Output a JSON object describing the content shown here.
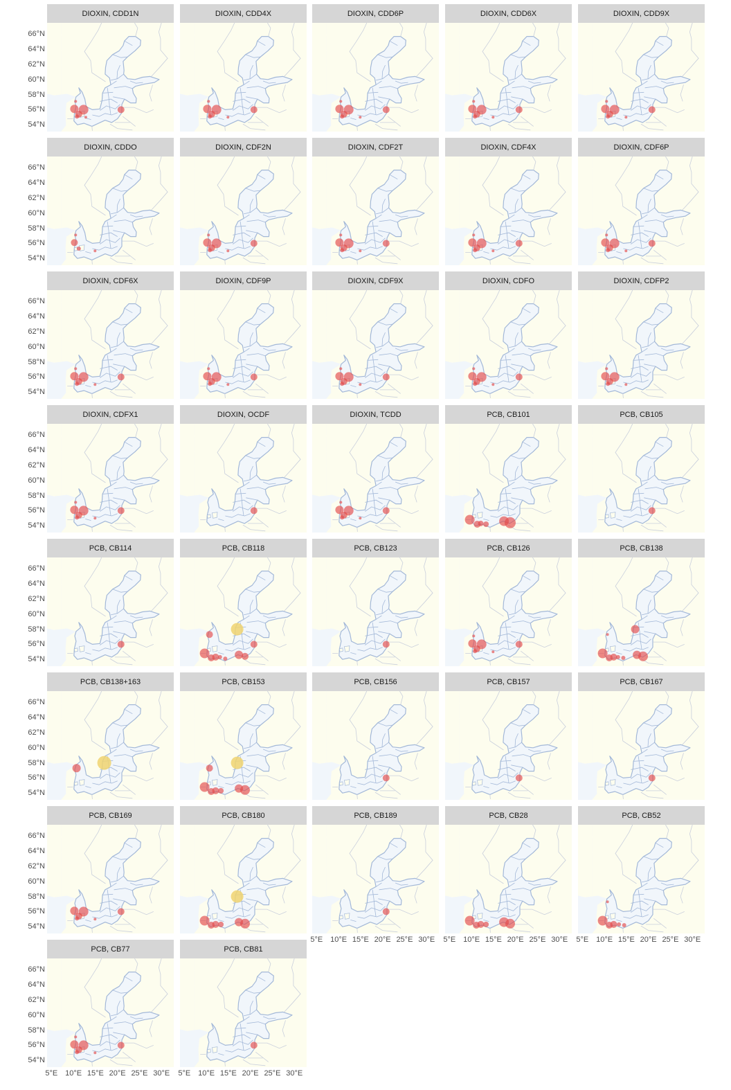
{
  "panels": [
    {
      "title": "DIOXIN, CDD1N",
      "points": [
        [
          10.5,
          57.2,
          2,
          "red"
        ],
        [
          10.2,
          56.2,
          6,
          "red"
        ],
        [
          12.3,
          56.1,
          7,
          "red"
        ],
        [
          11.2,
          55.5,
          5,
          "red"
        ],
        [
          10.8,
          55.2,
          3,
          "red"
        ],
        [
          12.8,
          55.1,
          2,
          "red"
        ],
        [
          20.8,
          56.1,
          5,
          "red"
        ]
      ]
    },
    {
      "title": "DIOXIN, CDD4X",
      "points": [
        [
          10.5,
          57.2,
          2,
          "red"
        ],
        [
          10.2,
          56.2,
          6,
          "red"
        ],
        [
          12.3,
          56.1,
          7,
          "red"
        ],
        [
          11.2,
          55.5,
          5,
          "red"
        ],
        [
          10.8,
          55.2,
          3,
          "red"
        ],
        [
          14.9,
          55.1,
          2,
          "red"
        ],
        [
          20.8,
          56.1,
          5,
          "red"
        ]
      ]
    },
    {
      "title": "DIOXIN, CDD6P",
      "points": [
        [
          10.5,
          57.2,
          2,
          "red"
        ],
        [
          10.2,
          56.2,
          6,
          "red"
        ],
        [
          12.3,
          56.1,
          7,
          "red"
        ],
        [
          11.2,
          55.5,
          5,
          "red"
        ],
        [
          10.8,
          55.2,
          3,
          "red"
        ],
        [
          14.9,
          55.1,
          2,
          "red"
        ],
        [
          20.8,
          56.1,
          5,
          "red"
        ]
      ]
    },
    {
      "title": "DIOXIN, CDD6X",
      "points": [
        [
          10.5,
          57.2,
          2,
          "red"
        ],
        [
          10.2,
          56.2,
          6,
          "red"
        ],
        [
          12.3,
          56.1,
          7,
          "red"
        ],
        [
          11.2,
          55.5,
          5,
          "red"
        ],
        [
          10.8,
          55.2,
          3,
          "red"
        ],
        [
          14.9,
          55.1,
          2,
          "red"
        ],
        [
          20.8,
          56.1,
          5,
          "red"
        ]
      ]
    },
    {
      "title": "DIOXIN, CDD9X",
      "points": [
        [
          10.5,
          57.2,
          2,
          "red"
        ],
        [
          10.2,
          56.2,
          6,
          "red"
        ],
        [
          12.3,
          56.1,
          7,
          "red"
        ],
        [
          11.2,
          55.5,
          5,
          "red"
        ],
        [
          10.8,
          55.2,
          3,
          "red"
        ],
        [
          14.9,
          55.1,
          2,
          "red"
        ],
        [
          20.8,
          56.1,
          5,
          "red"
        ]
      ]
    },
    {
      "title": "DIOXIN, CDDO",
      "points": [
        [
          10.5,
          57.2,
          2,
          "red"
        ],
        [
          10.2,
          56.2,
          5,
          "red"
        ],
        [
          11.2,
          55.4,
          3,
          "red"
        ],
        [
          14.9,
          55.1,
          2,
          "red"
        ]
      ]
    },
    {
      "title": "DIOXIN, CDF2N",
      "points": [
        [
          10.5,
          57.2,
          2,
          "red"
        ],
        [
          10.2,
          56.2,
          6,
          "red"
        ],
        [
          12.3,
          56.1,
          7,
          "red"
        ],
        [
          11.2,
          55.5,
          5,
          "red"
        ],
        [
          10.8,
          55.2,
          3,
          "red"
        ],
        [
          14.9,
          55.1,
          2,
          "red"
        ],
        [
          20.8,
          56.1,
          5,
          "red"
        ]
      ]
    },
    {
      "title": "DIOXIN, CDF2T",
      "points": [
        [
          10.5,
          57.2,
          2,
          "red"
        ],
        [
          10.2,
          56.2,
          6,
          "red"
        ],
        [
          12.3,
          56.1,
          7,
          "red"
        ],
        [
          11.2,
          55.5,
          5,
          "red"
        ],
        [
          10.8,
          55.2,
          3,
          "red"
        ],
        [
          14.9,
          55.1,
          2,
          "red"
        ],
        [
          20.8,
          56.1,
          5,
          "red"
        ]
      ]
    },
    {
      "title": "DIOXIN, CDF4X",
      "points": [
        [
          10.5,
          57.2,
          2,
          "red"
        ],
        [
          10.2,
          56.2,
          6,
          "red"
        ],
        [
          12.3,
          56.1,
          7,
          "red"
        ],
        [
          11.2,
          55.5,
          5,
          "red"
        ],
        [
          10.8,
          55.2,
          3,
          "red"
        ],
        [
          14.9,
          55.1,
          2,
          "red"
        ],
        [
          20.8,
          56.1,
          5,
          "red"
        ]
      ]
    },
    {
      "title": "DIOXIN, CDF6P",
      "points": [
        [
          10.5,
          57.2,
          2,
          "red"
        ],
        [
          10.2,
          56.2,
          6,
          "red"
        ],
        [
          12.3,
          56.1,
          7,
          "red"
        ],
        [
          11.2,
          55.5,
          5,
          "red"
        ],
        [
          10.8,
          55.2,
          3,
          "red"
        ],
        [
          14.9,
          55.1,
          2,
          "red"
        ],
        [
          20.8,
          56.1,
          5,
          "red"
        ]
      ]
    },
    {
      "title": "DIOXIN, CDF6X",
      "points": [
        [
          10.5,
          57.2,
          2,
          "red"
        ],
        [
          10.2,
          56.2,
          6,
          "red"
        ],
        [
          12.3,
          56.1,
          7,
          "red"
        ],
        [
          11.2,
          55.5,
          5,
          "red"
        ],
        [
          10.8,
          55.2,
          3,
          "red"
        ],
        [
          14.9,
          55.1,
          2,
          "red"
        ],
        [
          20.8,
          56.1,
          5,
          "red"
        ]
      ]
    },
    {
      "title": "DIOXIN, CDF9P",
      "points": [
        [
          10.5,
          57.2,
          2,
          "red"
        ],
        [
          10.2,
          56.2,
          6,
          "red"
        ],
        [
          12.3,
          56.1,
          7,
          "red"
        ],
        [
          11.2,
          55.5,
          5,
          "red"
        ],
        [
          10.8,
          55.2,
          3,
          "red"
        ],
        [
          14.9,
          55.1,
          2,
          "red"
        ],
        [
          20.8,
          56.1,
          5,
          "red"
        ]
      ]
    },
    {
      "title": "DIOXIN, CDF9X",
      "points": [
        [
          10.5,
          57.2,
          2,
          "red"
        ],
        [
          10.2,
          56.2,
          6,
          "red"
        ],
        [
          12.3,
          56.1,
          7,
          "red"
        ],
        [
          11.2,
          55.5,
          5,
          "red"
        ],
        [
          10.8,
          55.2,
          3,
          "red"
        ],
        [
          14.9,
          55.1,
          2,
          "red"
        ],
        [
          20.8,
          56.1,
          5,
          "red"
        ]
      ]
    },
    {
      "title": "DIOXIN, CDFO",
      "points": [
        [
          10.5,
          57.2,
          2,
          "red"
        ],
        [
          10.2,
          56.2,
          6,
          "red"
        ],
        [
          12.3,
          56.1,
          7,
          "red"
        ],
        [
          11.2,
          55.5,
          5,
          "red"
        ],
        [
          10.8,
          55.2,
          3,
          "red"
        ],
        [
          14.9,
          55.1,
          2,
          "red"
        ],
        [
          20.8,
          56.1,
          5,
          "red"
        ]
      ]
    },
    {
      "title": "DIOXIN, CDFP2",
      "points": [
        [
          10.5,
          57.2,
          2,
          "red"
        ],
        [
          10.2,
          56.2,
          6,
          "red"
        ],
        [
          12.3,
          56.1,
          7,
          "red"
        ],
        [
          11.2,
          55.5,
          5,
          "red"
        ],
        [
          10.8,
          55.2,
          3,
          "red"
        ],
        [
          14.9,
          55.1,
          2,
          "red"
        ]
      ]
    },
    {
      "title": "DIOXIN, CDFX1",
      "points": [
        [
          10.5,
          57.2,
          2,
          "red"
        ],
        [
          10.2,
          56.2,
          6,
          "red"
        ],
        [
          12.3,
          56.1,
          7,
          "red"
        ],
        [
          11.2,
          55.5,
          5,
          "red"
        ],
        [
          10.8,
          55.2,
          3,
          "red"
        ],
        [
          14.9,
          55.1,
          2,
          "red"
        ],
        [
          20.8,
          56.1,
          5,
          "red"
        ]
      ]
    },
    {
      "title": "DIOXIN, OCDF",
      "points": [
        [
          20.8,
          56.1,
          5,
          "red"
        ]
      ]
    },
    {
      "title": "DIOXIN, TCDD",
      "points": [
        [
          10.5,
          57.2,
          2,
          "red"
        ],
        [
          10.2,
          56.2,
          6,
          "red"
        ],
        [
          12.3,
          56.1,
          7,
          "red"
        ],
        [
          11.2,
          55.5,
          5,
          "red"
        ],
        [
          10.8,
          55.2,
          3,
          "red"
        ],
        [
          14.9,
          55.1,
          2,
          "red"
        ],
        [
          20.8,
          56.1,
          5,
          "red"
        ]
      ]
    },
    {
      "title": "PCB, CB101",
      "points": [
        [
          9.6,
          54.9,
          7,
          "red"
        ],
        [
          11.3,
          54.3,
          5,
          "red"
        ],
        [
          12.1,
          54.4,
          4,
          "red"
        ],
        [
          13.3,
          54.3,
          4,
          "red"
        ],
        [
          17.4,
          54.7,
          7,
          "red"
        ],
        [
          18.8,
          54.5,
          8,
          "red"
        ]
      ]
    },
    {
      "title": "PCB, CB105",
      "points": [
        [
          20.8,
          56.1,
          5,
          "red"
        ]
      ]
    },
    {
      "title": "PCB, CB114",
      "points": [
        [
          20.8,
          56.1,
          5,
          "red"
        ]
      ]
    },
    {
      "title": "PCB, CB118",
      "points": [
        [
          10.7,
          57.4,
          5,
          "red"
        ],
        [
          17.0,
          58.1,
          9,
          "yellow"
        ],
        [
          9.6,
          54.9,
          7,
          "red"
        ],
        [
          11.1,
          54.3,
          5,
          "red"
        ],
        [
          12.1,
          54.4,
          5,
          "red"
        ],
        [
          13.1,
          54.4,
          3,
          "red"
        ],
        [
          14.3,
          54.2,
          3,
          "red"
        ],
        [
          17.4,
          54.7,
          6,
          "red"
        ],
        [
          18.8,
          54.5,
          5,
          "red"
        ],
        [
          20.8,
          56.1,
          5,
          "red"
        ]
      ]
    },
    {
      "title": "PCB, CB123",
      "points": [
        [
          20.8,
          56.1,
          5,
          "red"
        ]
      ]
    },
    {
      "title": "PCB, CB126",
      "points": [
        [
          10.5,
          57.2,
          2,
          "red"
        ],
        [
          10.2,
          56.2,
          6,
          "red"
        ],
        [
          12.3,
          56.1,
          7,
          "red"
        ],
        [
          11.2,
          55.5,
          5,
          "red"
        ],
        [
          10.8,
          55.2,
          3,
          "red"
        ],
        [
          14.9,
          55.1,
          2,
          "red"
        ],
        [
          20.8,
          56.1,
          5,
          "red"
        ]
      ]
    },
    {
      "title": "PCB, CB138",
      "points": [
        [
          10.7,
          57.4,
          2,
          "red"
        ],
        [
          17.0,
          58.1,
          6,
          "red"
        ],
        [
          9.6,
          54.9,
          7,
          "red"
        ],
        [
          11.1,
          54.3,
          5,
          "red"
        ],
        [
          12.1,
          54.4,
          5,
          "red"
        ],
        [
          13.1,
          54.4,
          3,
          "red"
        ],
        [
          14.3,
          54.3,
          3,
          "red"
        ],
        [
          17.4,
          54.7,
          6,
          "red"
        ],
        [
          18.8,
          54.5,
          7,
          "red"
        ]
      ]
    },
    {
      "title": "PCB, CB138+163",
      "points": [
        [
          10.7,
          57.4,
          6,
          "red"
        ],
        [
          17.0,
          58.1,
          10,
          "yellow"
        ]
      ]
    },
    {
      "title": "PCB, CB153",
      "points": [
        [
          10.7,
          57.4,
          5,
          "red"
        ],
        [
          17.0,
          58.1,
          9,
          "yellow"
        ],
        [
          9.6,
          54.9,
          7,
          "red"
        ],
        [
          11.1,
          54.3,
          5,
          "red"
        ],
        [
          12.1,
          54.4,
          5,
          "red"
        ],
        [
          13.3,
          54.4,
          4,
          "red"
        ],
        [
          17.4,
          54.7,
          6,
          "red"
        ],
        [
          18.8,
          54.5,
          7,
          "red"
        ]
      ]
    },
    {
      "title": "PCB, CB156",
      "points": [
        [
          20.8,
          56.1,
          5,
          "red"
        ]
      ]
    },
    {
      "title": "PCB, CB157",
      "points": [
        [
          20.8,
          56.1,
          5,
          "red"
        ]
      ]
    },
    {
      "title": "PCB, CB167",
      "points": [
        [
          20.8,
          56.1,
          5,
          "red"
        ]
      ]
    },
    {
      "title": "PCB, CB169",
      "points": [
        [
          10.2,
          56.2,
          6,
          "red"
        ],
        [
          12.3,
          56.1,
          7,
          "red"
        ],
        [
          11.2,
          55.5,
          5,
          "red"
        ],
        [
          10.8,
          55.2,
          3,
          "red"
        ],
        [
          14.9,
          55.1,
          2,
          "red"
        ],
        [
          20.8,
          56.1,
          5,
          "red"
        ]
      ]
    },
    {
      "title": "PCB, CB180",
      "points": [
        [
          17.0,
          58.1,
          9,
          "yellow"
        ],
        [
          9.6,
          54.9,
          7,
          "red"
        ],
        [
          11.1,
          54.3,
          5,
          "red"
        ],
        [
          12.1,
          54.4,
          5,
          "red"
        ],
        [
          13.3,
          54.4,
          4,
          "red"
        ],
        [
          17.4,
          54.7,
          6,
          "red"
        ],
        [
          18.8,
          54.5,
          7,
          "red"
        ]
      ]
    },
    {
      "title": "PCB, CB189",
      "points": [
        [
          20.8,
          56.1,
          5,
          "red"
        ]
      ]
    },
    {
      "title": "PCB, CB28",
      "points": [
        [
          9.6,
          54.9,
          7,
          "red"
        ],
        [
          11.1,
          54.3,
          5,
          "red"
        ],
        [
          12.1,
          54.4,
          5,
          "red"
        ],
        [
          13.3,
          54.4,
          4,
          "red"
        ],
        [
          17.4,
          54.7,
          7,
          "red"
        ],
        [
          18.8,
          54.5,
          7,
          "red"
        ]
      ]
    },
    {
      "title": "PCB, CB52",
      "points": [
        [
          10.7,
          57.4,
          2,
          "red"
        ],
        [
          9.6,
          54.9,
          7,
          "red"
        ],
        [
          11.1,
          54.3,
          5,
          "red"
        ],
        [
          12.1,
          54.4,
          5,
          "red"
        ],
        [
          13.3,
          54.4,
          3,
          "red"
        ],
        [
          14.5,
          54.3,
          3,
          "red"
        ]
      ]
    },
    {
      "title": "PCB, CB77",
      "points": [
        [
          10.5,
          57.2,
          2,
          "red"
        ],
        [
          10.2,
          56.2,
          6,
          "red"
        ],
        [
          12.3,
          56.1,
          7,
          "red"
        ],
        [
          11.2,
          55.5,
          5,
          "red"
        ],
        [
          10.8,
          55.2,
          3,
          "red"
        ],
        [
          14.9,
          55.1,
          2,
          "red"
        ],
        [
          20.8,
          56.1,
          5,
          "red"
        ]
      ]
    },
    {
      "title": "PCB, CB81",
      "points": [
        [
          20.8,
          56.1,
          5,
          "red"
        ]
      ]
    }
  ],
  "y_ticks": [
    66,
    64,
    62,
    60,
    58,
    56,
    54
  ],
  "y_tick_labels": [
    "66°N",
    "64°N",
    "62°N",
    "60°N",
    "58°N",
    "56°N",
    "54°N"
  ],
  "x_ticks": [
    5,
    10,
    15,
    20,
    25,
    30
  ],
  "x_tick_labels": [
    "5°E",
    "10°E",
    "15°E",
    "20°E",
    "25°E",
    "30°E"
  ],
  "colors": {
    "red": "#e34a4a",
    "yellow": "#f0d470",
    "land": "#fdfdee",
    "water": "#f1f6fb",
    "coast": "#a3b8d8",
    "border": "#c9cfdc",
    "strip": "#d6d6d6"
  }
}
